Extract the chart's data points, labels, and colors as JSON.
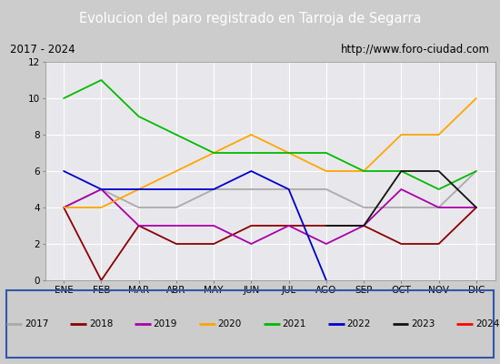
{
  "title": "Evolucion del paro registrado en Tarroja de Segarra",
  "subtitle_left": "2017 - 2024",
  "subtitle_right": "http://www.foro-ciudad.com",
  "x_labels": [
    "ENE",
    "FEB",
    "MAR",
    "ABR",
    "MAY",
    "JUN",
    "JUL",
    "AGO",
    "SEP",
    "OCT",
    "NOV",
    "DIC"
  ],
  "ylim": [
    0,
    12
  ],
  "yticks": [
    0,
    2,
    4,
    6,
    8,
    10,
    12
  ],
  "series": {
    "2017": {
      "color": "#aaaaaa",
      "values": [
        4,
        5,
        4,
        4,
        5,
        5,
        5,
        5,
        4,
        4,
        4,
        6
      ]
    },
    "2018": {
      "color": "#8b0000",
      "values": [
        4,
        0,
        3,
        2,
        2,
        3,
        3,
        3,
        3,
        2,
        2,
        4
      ]
    },
    "2019": {
      "color": "#aa00aa",
      "values": [
        4,
        5,
        3,
        3,
        3,
        2,
        3,
        2,
        3,
        5,
        4,
        4
      ]
    },
    "2020": {
      "color": "#ffa500",
      "values": [
        4,
        4,
        5,
        6,
        7,
        8,
        7,
        6,
        6,
        8,
        8,
        10
      ]
    },
    "2021": {
      "color": "#00bb00",
      "values": [
        10,
        11,
        9,
        8,
        7,
        7,
        7,
        7,
        6,
        6,
        5,
        6
      ]
    },
    "2022": {
      "color": "#0000cc",
      "values": [
        6,
        5,
        5,
        5,
        5,
        6,
        5,
        0,
        null,
        null,
        null,
        null
      ]
    },
    "2023": {
      "color": "#111111",
      "values": [
        null,
        null,
        null,
        null,
        null,
        null,
        null,
        3,
        3,
        6,
        6,
        4
      ]
    },
    "2024": {
      "color": "#ff0000",
      "values": [
        4,
        null,
        null,
        null,
        null,
        null,
        null,
        null,
        null,
        null,
        null,
        null
      ]
    }
  },
  "title_bg": "#4477cc",
  "title_color": "#ffffff",
  "subtitle_bg": "#e0e0e0",
  "plot_bg": "#e8e8ec",
  "grid_color": "#ffffff",
  "legend_bg": "#e0e0e0",
  "legend_border": "#3355aa"
}
